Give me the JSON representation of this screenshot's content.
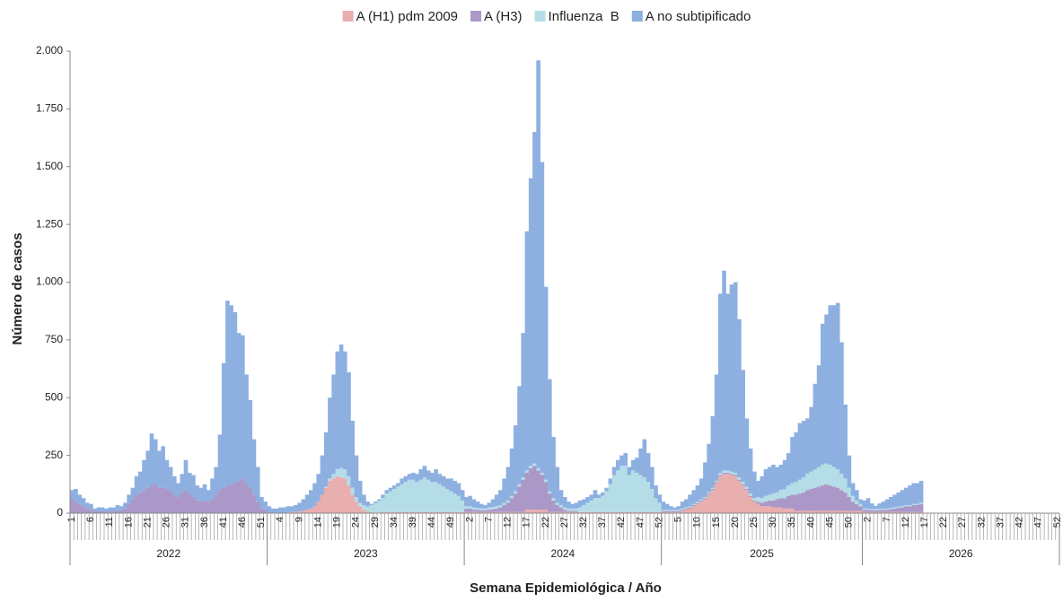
{
  "chart_data": {
    "type": "stacked-bar",
    "y_label": "Número de casos",
    "x_label": "Semana Epidemiológica / Año",
    "ylim": [
      0,
      2000
    ],
    "yticks": [
      0,
      250,
      500,
      750,
      {
        "value": 1000,
        "label": "1.000"
      },
      {
        "value": 1250,
        "label": "1.250"
      },
      {
        "value": 1500,
        "label": "1.500"
      },
      {
        "value": 1750,
        "label": "1.750"
      },
      {
        "value": 2000,
        "label": "2.000"
      }
    ],
    "years": [
      {
        "label": "2022",
        "weeks": 52
      },
      {
        "label": "2023",
        "weeks": 52
      },
      {
        "label": "2024",
        "weeks": 52
      },
      {
        "label": "2025",
        "weeks": 53
      },
      {
        "label": "2026",
        "weeks": 52
      }
    ],
    "categories": [
      "1",
      null,
      null,
      null,
      null,
      "6",
      null,
      null,
      null,
      null,
      "11",
      null,
      null,
      null,
      null,
      "16",
      null,
      null,
      null,
      null,
      "21",
      null,
      null,
      null,
      null,
      "26",
      null,
      null,
      null,
      null,
      "31",
      null,
      null,
      null,
      null,
      "36",
      null,
      null,
      null,
      null,
      "41",
      null,
      null,
      null,
      null,
      "46",
      null,
      null,
      null,
      null,
      "51",
      null,
      null,
      null,
      null,
      "4",
      null,
      null,
      null,
      null,
      "9",
      null,
      null,
      null,
      null,
      "14",
      null,
      null,
      null,
      null,
      "19",
      null,
      null,
      null,
      null,
      "24",
      null,
      null,
      null,
      null,
      "29",
      null,
      null,
      null,
      null,
      "34",
      null,
      null,
      null,
      null,
      "39",
      null,
      null,
      null,
      null,
      "44",
      null,
      null,
      null,
      null,
      "49",
      null,
      null,
      null,
      null,
      "2",
      null,
      null,
      null,
      null,
      "7",
      null,
      null,
      null,
      null,
      "12",
      null,
      null,
      null,
      null,
      "17",
      null,
      null,
      null,
      null,
      "22",
      null,
      null,
      null,
      null,
      "27",
      null,
      null,
      null,
      null,
      "32",
      null,
      null,
      null,
      null,
      "37",
      null,
      null,
      null,
      null,
      "42",
      null,
      null,
      null,
      null,
      "47",
      null,
      null,
      null,
      null,
      "52",
      null,
      null,
      null,
      null,
      "5",
      null,
      null,
      null,
      null,
      "10",
      null,
      null,
      null,
      null,
      "15",
      null,
      null,
      null,
      null,
      "20",
      null,
      null,
      null,
      null,
      "25",
      null,
      null,
      null,
      null,
      "30",
      null,
      null,
      null,
      null,
      "35",
      null,
      null,
      null,
      null,
      "40",
      null,
      null,
      null,
      null,
      "45",
      null,
      null,
      null,
      null,
      "50",
      null,
      null,
      null,
      null,
      "2",
      null,
      null,
      null,
      null,
      "7",
      null,
      null,
      null,
      null,
      "12",
      null,
      null,
      null,
      null,
      "17",
      null,
      null,
      null,
      null,
      "22",
      null,
      null,
      null,
      null,
      "27",
      null,
      null,
      null,
      null,
      "32",
      null,
      null,
      null,
      null,
      "37",
      null,
      null,
      null,
      null,
      "42",
      null,
      null,
      null,
      null,
      "47",
      null,
      null,
      null,
      null,
      "52"
    ],
    "series": [
      {
        "name": "A (H1) pdm 2009",
        "color": "#e9aeae",
        "values": [
          0,
          0,
          0,
          0,
          0,
          0,
          0,
          0,
          0,
          0,
          0,
          0,
          0,
          0,
          0,
          0,
          0,
          0,
          0,
          0,
          0,
          0,
          0,
          0,
          0,
          0,
          0,
          0,
          0,
          0,
          0,
          0,
          0,
          0,
          0,
          0,
          0,
          0,
          0,
          0,
          0,
          0,
          0,
          0,
          0,
          0,
          0,
          0,
          0,
          0,
          0,
          0,
          2,
          2,
          2,
          2,
          2,
          3,
          5,
          5,
          8,
          10,
          15,
          20,
          30,
          50,
          80,
          110,
          140,
          150,
          160,
          155,
          150,
          120,
          80,
          50,
          30,
          15,
          8,
          5,
          3,
          3,
          5,
          5,
          5,
          5,
          5,
          5,
          5,
          5,
          5,
          5,
          5,
          5,
          5,
          5,
          5,
          5,
          5,
          5,
          5,
          5,
          5,
          5,
          5,
          5,
          5,
          5,
          5,
          5,
          5,
          5,
          5,
          5,
          5,
          5,
          5,
          5,
          5,
          5,
          15,
          15,
          15,
          15,
          15,
          15,
          5,
          5,
          5,
          5,
          5,
          5,
          5,
          5,
          5,
          5,
          5,
          5,
          5,
          5,
          5,
          5,
          5,
          5,
          5,
          5,
          5,
          5,
          5,
          5,
          5,
          5,
          5,
          5,
          5,
          5,
          5,
          5,
          5,
          5,
          5,
          10,
          15,
          20,
          30,
          40,
          50,
          60,
          80,
          100,
          130,
          160,
          170,
          170,
          165,
          160,
          140,
          120,
          100,
          70,
          50,
          40,
          30,
          30,
          30,
          25,
          25,
          25,
          20,
          20,
          20,
          10,
          10,
          10,
          10,
          10,
          10,
          10,
          10,
          10,
          10,
          10,
          10,
          10,
          10,
          10,
          10,
          10,
          10,
          5,
          5,
          5,
          5,
          5,
          5,
          5,
          5,
          5,
          5,
          5,
          5,
          5,
          5,
          5,
          5,
          null,
          null,
          null,
          null,
          null,
          null,
          null,
          null,
          null,
          null,
          null,
          null,
          null,
          null,
          null,
          null,
          null,
          null,
          null,
          null,
          null,
          null,
          null,
          null,
          null,
          null,
          null,
          null,
          null,
          null,
          null,
          null,
          null,
          null,
          null,
          null
        ]
      },
      {
        "name": "A (H3)",
        "color": "#ab98c8",
        "values": [
          60,
          50,
          40,
          30,
          20,
          15,
          10,
          8,
          8,
          8,
          8,
          10,
          12,
          12,
          20,
          40,
          60,
          80,
          90,
          100,
          110,
          120,
          130,
          110,
          110,
          105,
          95,
          80,
          70,
          90,
          100,
          85,
          70,
          55,
          50,
          55,
          50,
          60,
          80,
          100,
          110,
          120,
          120,
          130,
          140,
          150,
          130,
          110,
          80,
          50,
          20,
          15,
          0,
          0,
          0,
          0,
          0,
          0,
          0,
          0,
          0,
          0,
          0,
          0,
          0,
          0,
          0,
          0,
          0,
          0,
          0,
          0,
          0,
          0,
          0,
          0,
          0,
          0,
          0,
          0,
          0,
          0,
          0,
          0,
          0,
          0,
          0,
          0,
          0,
          0,
          0,
          0,
          0,
          0,
          0,
          0,
          0,
          0,
          0,
          0,
          0,
          0,
          0,
          0,
          15,
          15,
          10,
          10,
          8,
          8,
          10,
          12,
          15,
          20,
          30,
          40,
          60,
          80,
          110,
          140,
          160,
          180,
          190,
          170,
          150,
          120,
          80,
          50,
          30,
          20,
          10,
          5,
          5,
          5,
          0,
          0,
          0,
          0,
          0,
          0,
          0,
          0,
          0,
          0,
          0,
          0,
          0,
          0,
          0,
          0,
          0,
          0,
          0,
          0,
          0,
          0,
          5,
          5,
          5,
          5,
          5,
          5,
          5,
          5,
          5,
          5,
          5,
          5,
          5,
          5,
          5,
          5,
          5,
          5,
          5,
          5,
          5,
          5,
          5,
          5,
          5,
          10,
          15,
          20,
          25,
          30,
          35,
          40,
          45,
          55,
          60,
          70,
          75,
          80,
          90,
          95,
          100,
          105,
          110,
          115,
          110,
          105,
          100,
          90,
          80,
          60,
          40,
          30,
          20,
          10,
          10,
          8,
          8,
          8,
          10,
          10,
          12,
          15,
          18,
          20,
          25,
          25,
          30,
          30,
          35,
          null,
          null,
          null,
          null,
          null,
          null,
          null,
          null,
          null,
          null,
          null,
          null,
          null,
          null,
          null,
          null,
          null,
          null,
          null,
          null,
          null,
          null,
          null,
          null,
          null,
          null,
          null,
          null,
          null,
          null,
          null,
          null,
          null,
          null,
          null,
          null
        ]
      },
      {
        "name": "Influenza  B",
        "color": "#b5dde7",
        "values": [
          0,
          0,
          0,
          0,
          0,
          0,
          0,
          0,
          0,
          0,
          0,
          0,
          0,
          0,
          0,
          0,
          0,
          0,
          0,
          0,
          0,
          0,
          0,
          0,
          0,
          0,
          0,
          0,
          0,
          0,
          0,
          0,
          0,
          0,
          0,
          0,
          0,
          0,
          0,
          0,
          0,
          0,
          0,
          0,
          0,
          0,
          0,
          0,
          0,
          0,
          0,
          0,
          0,
          0,
          0,
          0,
          0,
          0,
          0,
          0,
          0,
          0,
          0,
          0,
          0,
          0,
          0,
          5,
          10,
          20,
          30,
          40,
          40,
          40,
          30,
          20,
          15,
          20,
          20,
          30,
          40,
          50,
          60,
          80,
          90,
          100,
          110,
          120,
          130,
          140,
          140,
          130,
          140,
          150,
          140,
          130,
          130,
          120,
          110,
          100,
          90,
          80,
          70,
          50,
          10,
          10,
          10,
          8,
          8,
          8,
          10,
          10,
          10,
          10,
          10,
          10,
          10,
          10,
          10,
          10,
          10,
          10,
          10,
          10,
          10,
          10,
          10,
          10,
          10,
          10,
          10,
          10,
          10,
          10,
          20,
          30,
          40,
          50,
          60,
          60,
          70,
          90,
          120,
          160,
          180,
          200,
          200,
          160,
          180,
          170,
          160,
          150,
          130,
          100,
          60,
          40,
          5,
          5,
          5,
          5,
          5,
          5,
          5,
          5,
          5,
          5,
          5,
          5,
          5,
          5,
          5,
          10,
          10,
          10,
          10,
          10,
          10,
          10,
          10,
          10,
          10,
          20,
          20,
          25,
          25,
          30,
          30,
          35,
          40,
          45,
          50,
          55,
          60,
          65,
          70,
          75,
          80,
          85,
          90,
          90,
          90,
          85,
          80,
          70,
          60,
          40,
          25,
          15,
          10,
          5,
          5,
          5,
          5,
          5,
          5,
          5,
          5,
          5,
          5,
          5,
          5,
          5,
          5,
          5,
          5,
          null,
          null,
          null,
          null,
          null,
          null,
          null,
          null,
          null,
          null,
          null,
          null,
          null,
          null,
          null,
          null,
          null,
          null,
          null,
          null,
          null,
          null,
          null,
          null,
          null,
          null,
          null,
          null,
          null,
          null,
          null,
          null,
          null,
          null,
          null,
          null
        ]
      },
      {
        "name": "A no subtipificado",
        "color": "#8db0e1",
        "values": [
          40,
          55,
          40,
          35,
          25,
          25,
          10,
          17,
          17,
          12,
          17,
          15,
          23,
          18,
          25,
          40,
          50,
          80,
          90,
          130,
          160,
          225,
          190,
          160,
          180,
          125,
          105,
          80,
          60,
          80,
          130,
          90,
          95,
          65,
          60,
          70,
          50,
          90,
          120,
          240,
          540,
          800,
          780,
          740,
          640,
          620,
          470,
          380,
          240,
          150,
          50,
          35,
          28,
          18,
          18,
          23,
          23,
          27,
          25,
          30,
          37,
          50,
          65,
          80,
          100,
          120,
          170,
          235,
          350,
          430,
          510,
          535,
          510,
          450,
          290,
          180,
          95,
          45,
          22,
          5,
          7,
          7,
          15,
          15,
          15,
          15,
          15,
          25,
          25,
          25,
          30,
          35,
          45,
          50,
          40,
          40,
          55,
          45,
          45,
          45,
          55,
          55,
          55,
          45,
          40,
          45,
          35,
          27,
          19,
          14,
          20,
          33,
          50,
          65,
          105,
          145,
          205,
          285,
          425,
          625,
          1035,
          1245,
          1435,
          1765,
          1345,
          835,
          485,
          265,
          155,
          65,
          45,
          30,
          20,
          25,
          30,
          25,
          25,
          25,
          35,
          15,
          15,
          15,
          25,
          35,
          45,
          45,
          55,
          35,
          45,
          65,
          115,
          165,
          125,
          95,
          55,
          35,
          35,
          25,
          15,
          10,
          15,
          30,
          35,
          50,
          60,
          70,
          90,
          150,
          210,
          310,
          460,
          775,
          865,
          765,
          810,
          825,
          685,
          485,
          295,
          195,
          115,
          70,
          95,
          115,
          120,
          125,
          110,
          110,
          125,
          140,
          200,
          215,
          245,
          245,
          240,
          280,
          370,
          440,
          610,
          645,
          690,
          700,
          720,
          570,
          320,
          140,
          55,
          45,
          20,
          35,
          45,
          24,
          14,
          24,
          30,
          40,
          48,
          55,
          62,
          70,
          75,
          85,
          90,
          90,
          95,
          null,
          null,
          null,
          null,
          null,
          null,
          null,
          null,
          null,
          null,
          null,
          null,
          null,
          null,
          null,
          null,
          null,
          null,
          null,
          null,
          null,
          null,
          null,
          null,
          null,
          null,
          null,
          null,
          null,
          null,
          null,
          null,
          null,
          null,
          null,
          null
        ]
      }
    ]
  }
}
